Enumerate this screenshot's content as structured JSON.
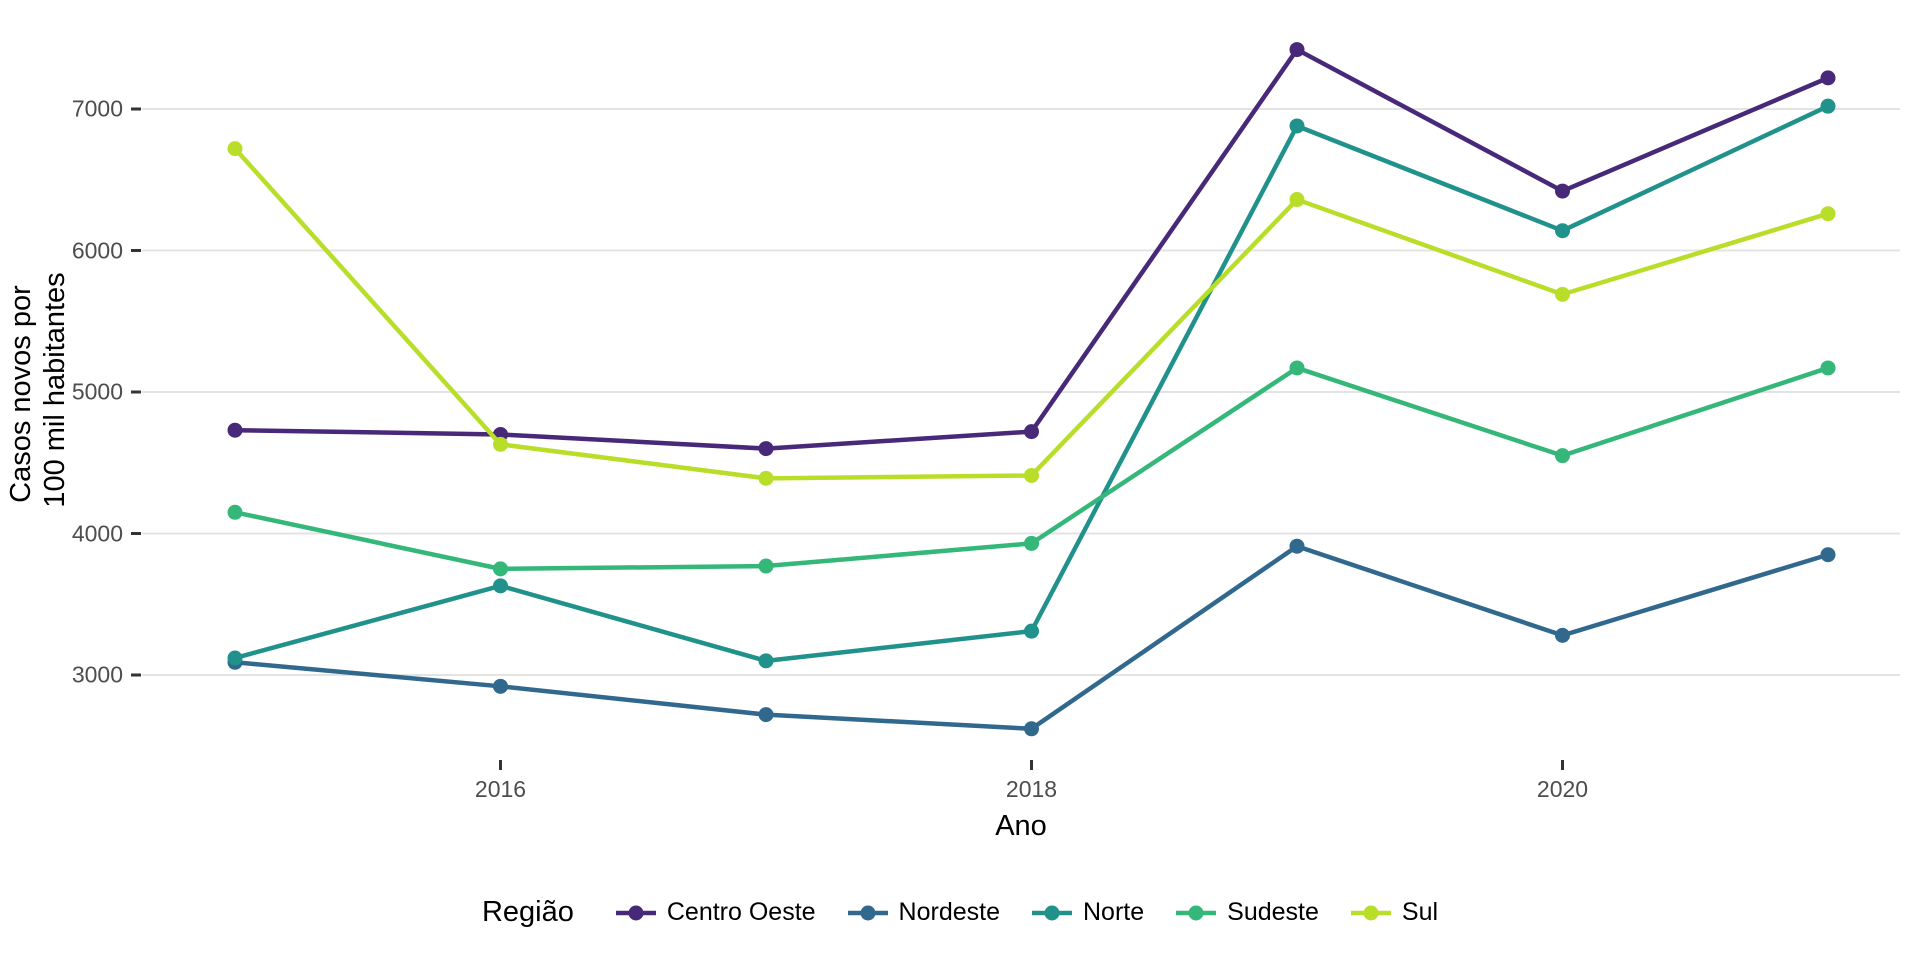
{
  "figure": {
    "background": "#ffffff",
    "grid_color": "#e3e3e3",
    "tick_color": "#333333",
    "tick_label_color": "#4d4d4d",
    "y_axis": {
      "title_line1": "Casos novos por",
      "title_line2": "100 mil habitantes",
      "tick_labels": [
        "3000",
        "4000",
        "5000",
        "6000",
        "7000"
      ]
    },
    "x_axis": {
      "title": "Ano",
      "tick_labels": [
        "2016",
        "2018",
        "2020"
      ]
    },
    "legend": {
      "title": "Região"
    }
  },
  "chart_data": {
    "type": "line",
    "title": "",
    "xlabel": "Ano",
    "ylabel": "Casos novos por 100 mil habitantes",
    "legend_title": "Região",
    "legend_position": "bottom",
    "grid": "horizontal-major-only",
    "x": [
      2015,
      2016,
      2017,
      2018,
      2019,
      2020,
      2021
    ],
    "x_ticks": [
      2016,
      2018,
      2020
    ],
    "y_ticks": [
      3000,
      4000,
      5000,
      6000,
      7000
    ],
    "xlim": [
      2014.65,
      2021.28
    ],
    "ylim": [
      2400,
      7630
    ],
    "series": [
      {
        "name": "Centro Oeste",
        "color": "#482878",
        "values": [
          4730,
          4700,
          4600,
          4720,
          7420,
          6420,
          7220
        ]
      },
      {
        "name": "Nordeste",
        "color": "#31688e",
        "values": [
          3090,
          2920,
          2720,
          2620,
          3910,
          3280,
          3850
        ]
      },
      {
        "name": "Norte",
        "color": "#21918c",
        "values": [
          3120,
          3630,
          3100,
          3310,
          6880,
          6140,
          7020
        ]
      },
      {
        "name": "Sudeste",
        "color": "#35b779",
        "values": [
          4150,
          3750,
          3770,
          3930,
          5170,
          4550,
          5170
        ]
      },
      {
        "name": "Sul",
        "color": "#b8de29",
        "values": [
          6720,
          4630,
          4390,
          4410,
          6360,
          5690,
          6260
        ]
      }
    ]
  }
}
